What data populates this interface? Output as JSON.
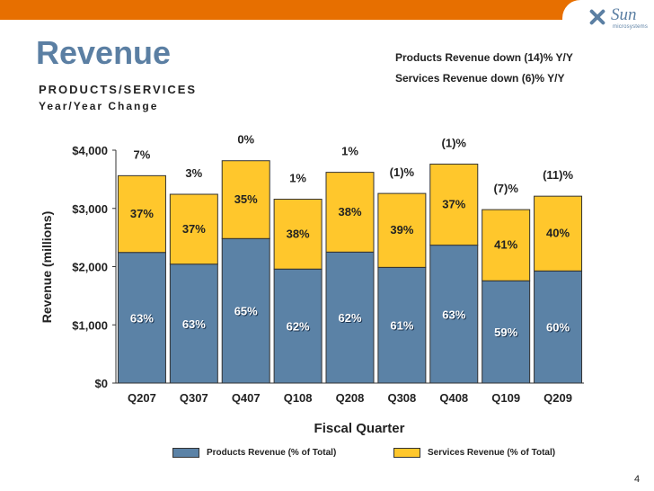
{
  "slide": {
    "title": "Revenue",
    "subtitle_line1": "PRODUCTS/SERVICES",
    "subtitle_line2": "Year/Year Change",
    "note_products": "Products Revenue down (14)% Y/Y",
    "note_services": "Services Revenue down (6)% Y/Y",
    "page_number": "4",
    "logo_word": "Sun",
    "logo_sub": "microsystems"
  },
  "colors": {
    "top_bar": "#e76f00",
    "title": "#5b7fa3",
    "products": "#5b82a6",
    "services": "#ffc72c"
  },
  "chart_data": {
    "type": "bar",
    "stacked": true,
    "categories": [
      "Q207",
      "Q307",
      "Q407",
      "Q108",
      "Q208",
      "Q308",
      "Q408",
      "Q109",
      "Q209"
    ],
    "series": [
      {
        "name": "Products Revenue (% of Total)",
        "values": [
          2244,
          2043,
          2482,
          1958,
          2250,
          1987,
          2369,
          1757,
          1926
        ],
        "labels": [
          "63%",
          "63%",
          "65%",
          "62%",
          "62%",
          "61%",
          "63%",
          "59%",
          "60%"
        ]
      },
      {
        "name": "Services Revenue (% of Total)",
        "values": [
          1318,
          1200,
          1337,
          1200,
          1370,
          1270,
          1392,
          1222,
          1284
        ],
        "labels": [
          "37%",
          "37%",
          "35%",
          "38%",
          "38%",
          "39%",
          "37%",
          "41%",
          "40%"
        ]
      }
    ],
    "yoy_change": [
      "7%",
      "3%",
      "0%",
      "1%",
      "1%",
      "(1)%",
      "(1)%",
      "(7)%",
      "(11)%"
    ],
    "ylim": [
      0,
      4000
    ],
    "yticks": [
      0,
      1000,
      2000,
      3000,
      4000
    ],
    "ytick_labels": [
      "$0",
      "$1,000",
      "$2,000",
      "$3,000",
      "$4,000"
    ],
    "xlabel": "Fiscal Quarter",
    "ylabel": "Revenue (millions)",
    "legend": [
      "Products Revenue (% of Total)",
      "Services Revenue (% of Total)"
    ],
    "legend_position": "bottom",
    "grid": false
  }
}
